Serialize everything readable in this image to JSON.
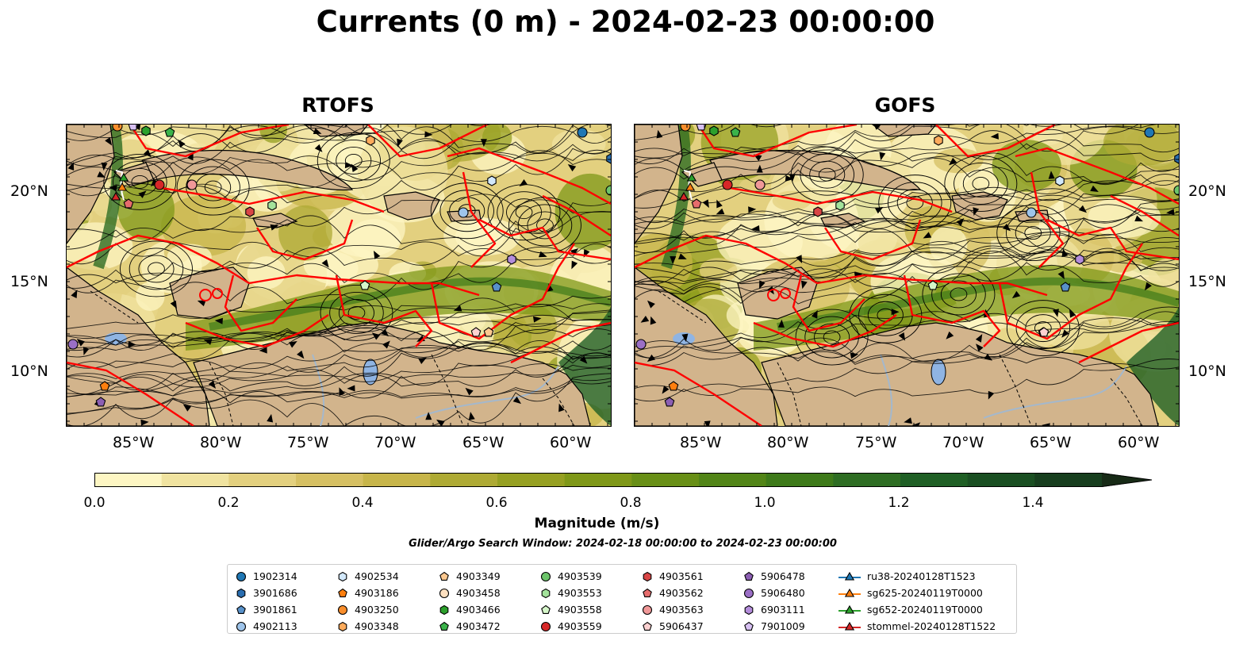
{
  "title": "Currents (0 m) - 2024-02-23 00:00:00",
  "panels": [
    {
      "name": "RTOFS"
    },
    {
      "name": "GOFS"
    }
  ],
  "axes": {
    "lon_ticks": [
      "85°W",
      "80°W",
      "75°W",
      "70°W",
      "65°W",
      "60°W"
    ],
    "lat_ticks": [
      "20°N",
      "15°N",
      "10°N"
    ]
  },
  "colorbar": {
    "label": "Magnitude (m/s)",
    "ticks": [
      "0.0",
      "0.2",
      "0.4",
      "0.6",
      "0.8",
      "1.0",
      "1.2",
      "1.4"
    ],
    "min": 0.0,
    "max": 1.5,
    "extend": "max",
    "colors": [
      "#fdf6c3",
      "#f0e3a0",
      "#e3d07f",
      "#d6c063",
      "#c7b54a",
      "#aeaa34",
      "#96a022",
      "#7f9818",
      "#688f16",
      "#528517",
      "#3e7a1a",
      "#2e6d23",
      "#1f5f25",
      "#1a4f22",
      "#173e1e",
      "#172a16"
    ]
  },
  "search_window": "Glider/Argo Search Window: 2024-02-18 00:00:00 to 2024-02-23 00:00:00",
  "colors": {
    "land": "#d2b48c",
    "eez_lines": "#ff0000",
    "lakes": "#8fb4e3",
    "rivers": "#a4b8cc"
  },
  "legend": [
    {
      "label": "1902314",
      "marker": "circle",
      "color": "#1f77b4"
    },
    {
      "label": "3901686",
      "marker": "hexagon",
      "color": "#2a6eb0"
    },
    {
      "label": "3901861",
      "marker": "pentagon",
      "color": "#5891c9"
    },
    {
      "label": "4902113",
      "marker": "circle",
      "color": "#9ec4ea"
    },
    {
      "label": "4902534",
      "marker": "hexagon",
      "color": "#d2e8fb"
    },
    {
      "label": "4903186",
      "marker": "pentagon",
      "color": "#ff7f0e"
    },
    {
      "label": "4903250",
      "marker": "circle",
      "color": "#f98e2c"
    },
    {
      "label": "4903348",
      "marker": "hexagon",
      "color": "#fdab5c"
    },
    {
      "label": "4903349",
      "marker": "pentagon",
      "color": "#fcc88f"
    },
    {
      "label": "4903458",
      "marker": "circle",
      "color": "#fde0c0"
    },
    {
      "label": "4903466",
      "marker": "hexagon",
      "color": "#2ca02c"
    },
    {
      "label": "4903472",
      "marker": "pentagon",
      "color": "#3bb34a"
    },
    {
      "label": "4903539",
      "marker": "circle",
      "color": "#6cc46a"
    },
    {
      "label": "4903553",
      "marker": "hexagon",
      "color": "#a3e29b"
    },
    {
      "label": "4903558",
      "marker": "pentagon",
      "color": "#d5f6c9"
    },
    {
      "label": "4903559",
      "marker": "circle",
      "color": "#d62728"
    },
    {
      "label": "4903561",
      "marker": "hexagon",
      "color": "#d94545"
    },
    {
      "label": "4903562",
      "marker": "pentagon",
      "color": "#e66c6c"
    },
    {
      "label": "4903563",
      "marker": "circle",
      "color": "#f09898"
    },
    {
      "label": "5906437",
      "marker": "pentagon",
      "color": "#fcd1d1"
    },
    {
      "label": "5906478",
      "marker": "pentagon",
      "color": "#8c5fb3"
    },
    {
      "label": "5906480",
      "marker": "circle",
      "color": "#9b6fc6"
    },
    {
      "label": "6903111",
      "marker": "hexagon",
      "color": "#b48ddb"
    },
    {
      "label": "7901009",
      "marker": "pentagon",
      "color": "#d7c0f2"
    },
    {
      "label": "ru38-20240128T1523",
      "marker": "triangle-line",
      "color": "#1f77b4"
    },
    {
      "label": "sg625-20240119T0000",
      "marker": "triangle-line",
      "color": "#ff7f0e"
    },
    {
      "label": "sg652-20240119T0000",
      "marker": "triangle-line",
      "color": "#2ca02c"
    },
    {
      "label": "stommel-20240128T1522",
      "marker": "triangle-line",
      "color": "#d62728"
    }
  ]
}
